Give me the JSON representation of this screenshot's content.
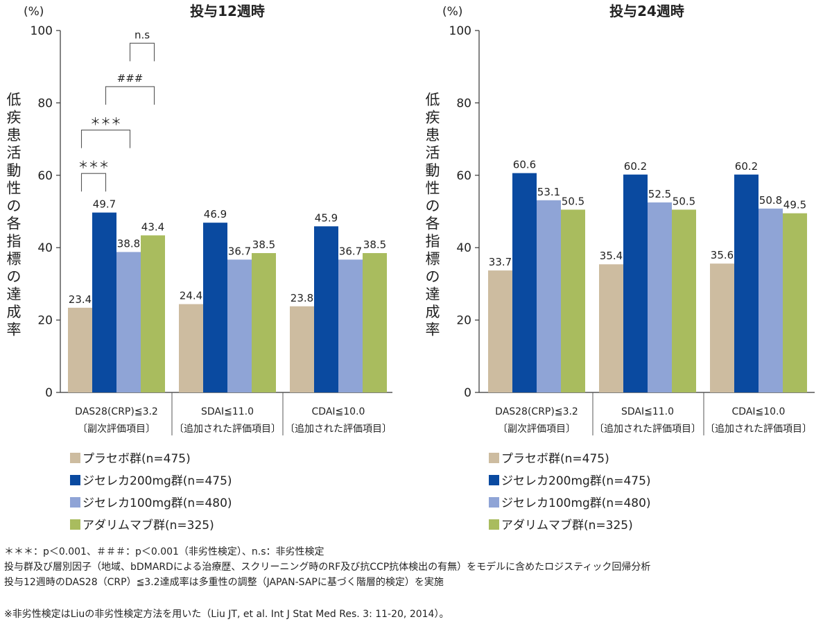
{
  "chart_data": [
    {
      "type": "bar",
      "title": "投与12週時",
      "unit_label": "(%)",
      "ylabel": "低疾患活動性の各指標の達成率",
      "ylim": [
        0,
        100
      ],
      "yticks": [
        "0",
        "20",
        "40",
        "60",
        "80",
        "100"
      ],
      "categories": [
        {
          "line1": "DAS28(CRP)≦3.2",
          "line2": "〔副次評価項目〕"
        },
        {
          "line1": "SDAI≦11.0",
          "line2": "〔追加された評価項目〕"
        },
        {
          "line1": "CDAI≦10.0",
          "line2": "〔追加された評価項目〕"
        }
      ],
      "series": [
        {
          "name": "プラセボ群(n=475)",
          "color": "#cdbca0",
          "values": [
            23.4,
            24.4,
            23.8
          ],
          "labels": [
            "23.4",
            "24.4",
            "23.8"
          ]
        },
        {
          "name": "ジセレカ200mg群(n=475)",
          "color": "#0a4aa0",
          "values": [
            49.7,
            46.9,
            45.9
          ],
          "labels": [
            "49.7",
            "46.9",
            "45.9"
          ]
        },
        {
          "name": "ジセレカ100mg群(n=480)",
          "color": "#8fa4d6",
          "values": [
            38.8,
            36.7,
            36.7
          ],
          "labels": [
            "38.8",
            "36.7",
            "36.7"
          ]
        },
        {
          "name": "アダリムマブ群(n=325)",
          "color": "#a9bc5e",
          "values": [
            43.4,
            38.5,
            38.5
          ],
          "labels": [
            "43.4",
            "38.5",
            "38.5"
          ]
        }
      ],
      "significance": [
        {
          "label": "n.s"
        },
        {
          "label": "###"
        },
        {
          "label": "＊＊＊"
        },
        {
          "label": "＊＊＊"
        }
      ]
    },
    {
      "type": "bar",
      "title": "投与24週時",
      "unit_label": "(%)",
      "ylabel": "低疾患活動性の各指標の達成率",
      "ylim": [
        0,
        100
      ],
      "yticks": [
        "0",
        "20",
        "40",
        "60",
        "80",
        "100"
      ],
      "categories": [
        {
          "line1": "DAS28(CRP)≦3.2",
          "line2": "〔副次評価項目〕"
        },
        {
          "line1": "SDAI≦11.0",
          "line2": "〔追加された評価項目〕"
        },
        {
          "line1": "CDAI≦10.0",
          "line2": "〔追加された評価項目〕"
        }
      ],
      "series": [
        {
          "name": "プラセボ群(n=475)",
          "color": "#cdbca0",
          "values": [
            33.7,
            35.4,
            35.6
          ],
          "labels": [
            "33.7",
            "35.4",
            "35.6"
          ]
        },
        {
          "name": "ジセレカ200mg群(n=475)",
          "color": "#0a4aa0",
          "values": [
            60.6,
            60.2,
            60.2
          ],
          "labels": [
            "60.6",
            "60.2",
            "60.2"
          ]
        },
        {
          "name": "ジセレカ100mg群(n=480)",
          "color": "#8fa4d6",
          "values": [
            53.1,
            52.5,
            50.8
          ],
          "labels": [
            "53.1",
            "52.5",
            "50.8"
          ]
        },
        {
          "name": "アダリムマブ群(n=325)",
          "color": "#a9bc5e",
          "values": [
            50.5,
            50.5,
            49.5
          ],
          "labels": [
            "50.5",
            "50.5",
            "49.5"
          ]
        }
      ],
      "significance": []
    }
  ],
  "footnotes": [
    "＊＊＊：p＜0.001、＃＃＃：p＜0.001（非劣性検定）、n.s：非劣性検定",
    "投与群及び層別因子（地域、bDMARDによる治療歴、スクリーニング時のRF及び抗CCP抗体検出の有無）をモデルに含めたロジスティック回帰分析",
    "投与12週時のDAS28（CRP）≦3.2達成率は多重性の調整（JAPAN-SAPに基づく階層的検定）を実施",
    "※非劣性検定はLiuの非劣性検定方法を用いた（Liu JT, et al. Int J Stat Med Res. 3: 11-20, 2014）。"
  ]
}
